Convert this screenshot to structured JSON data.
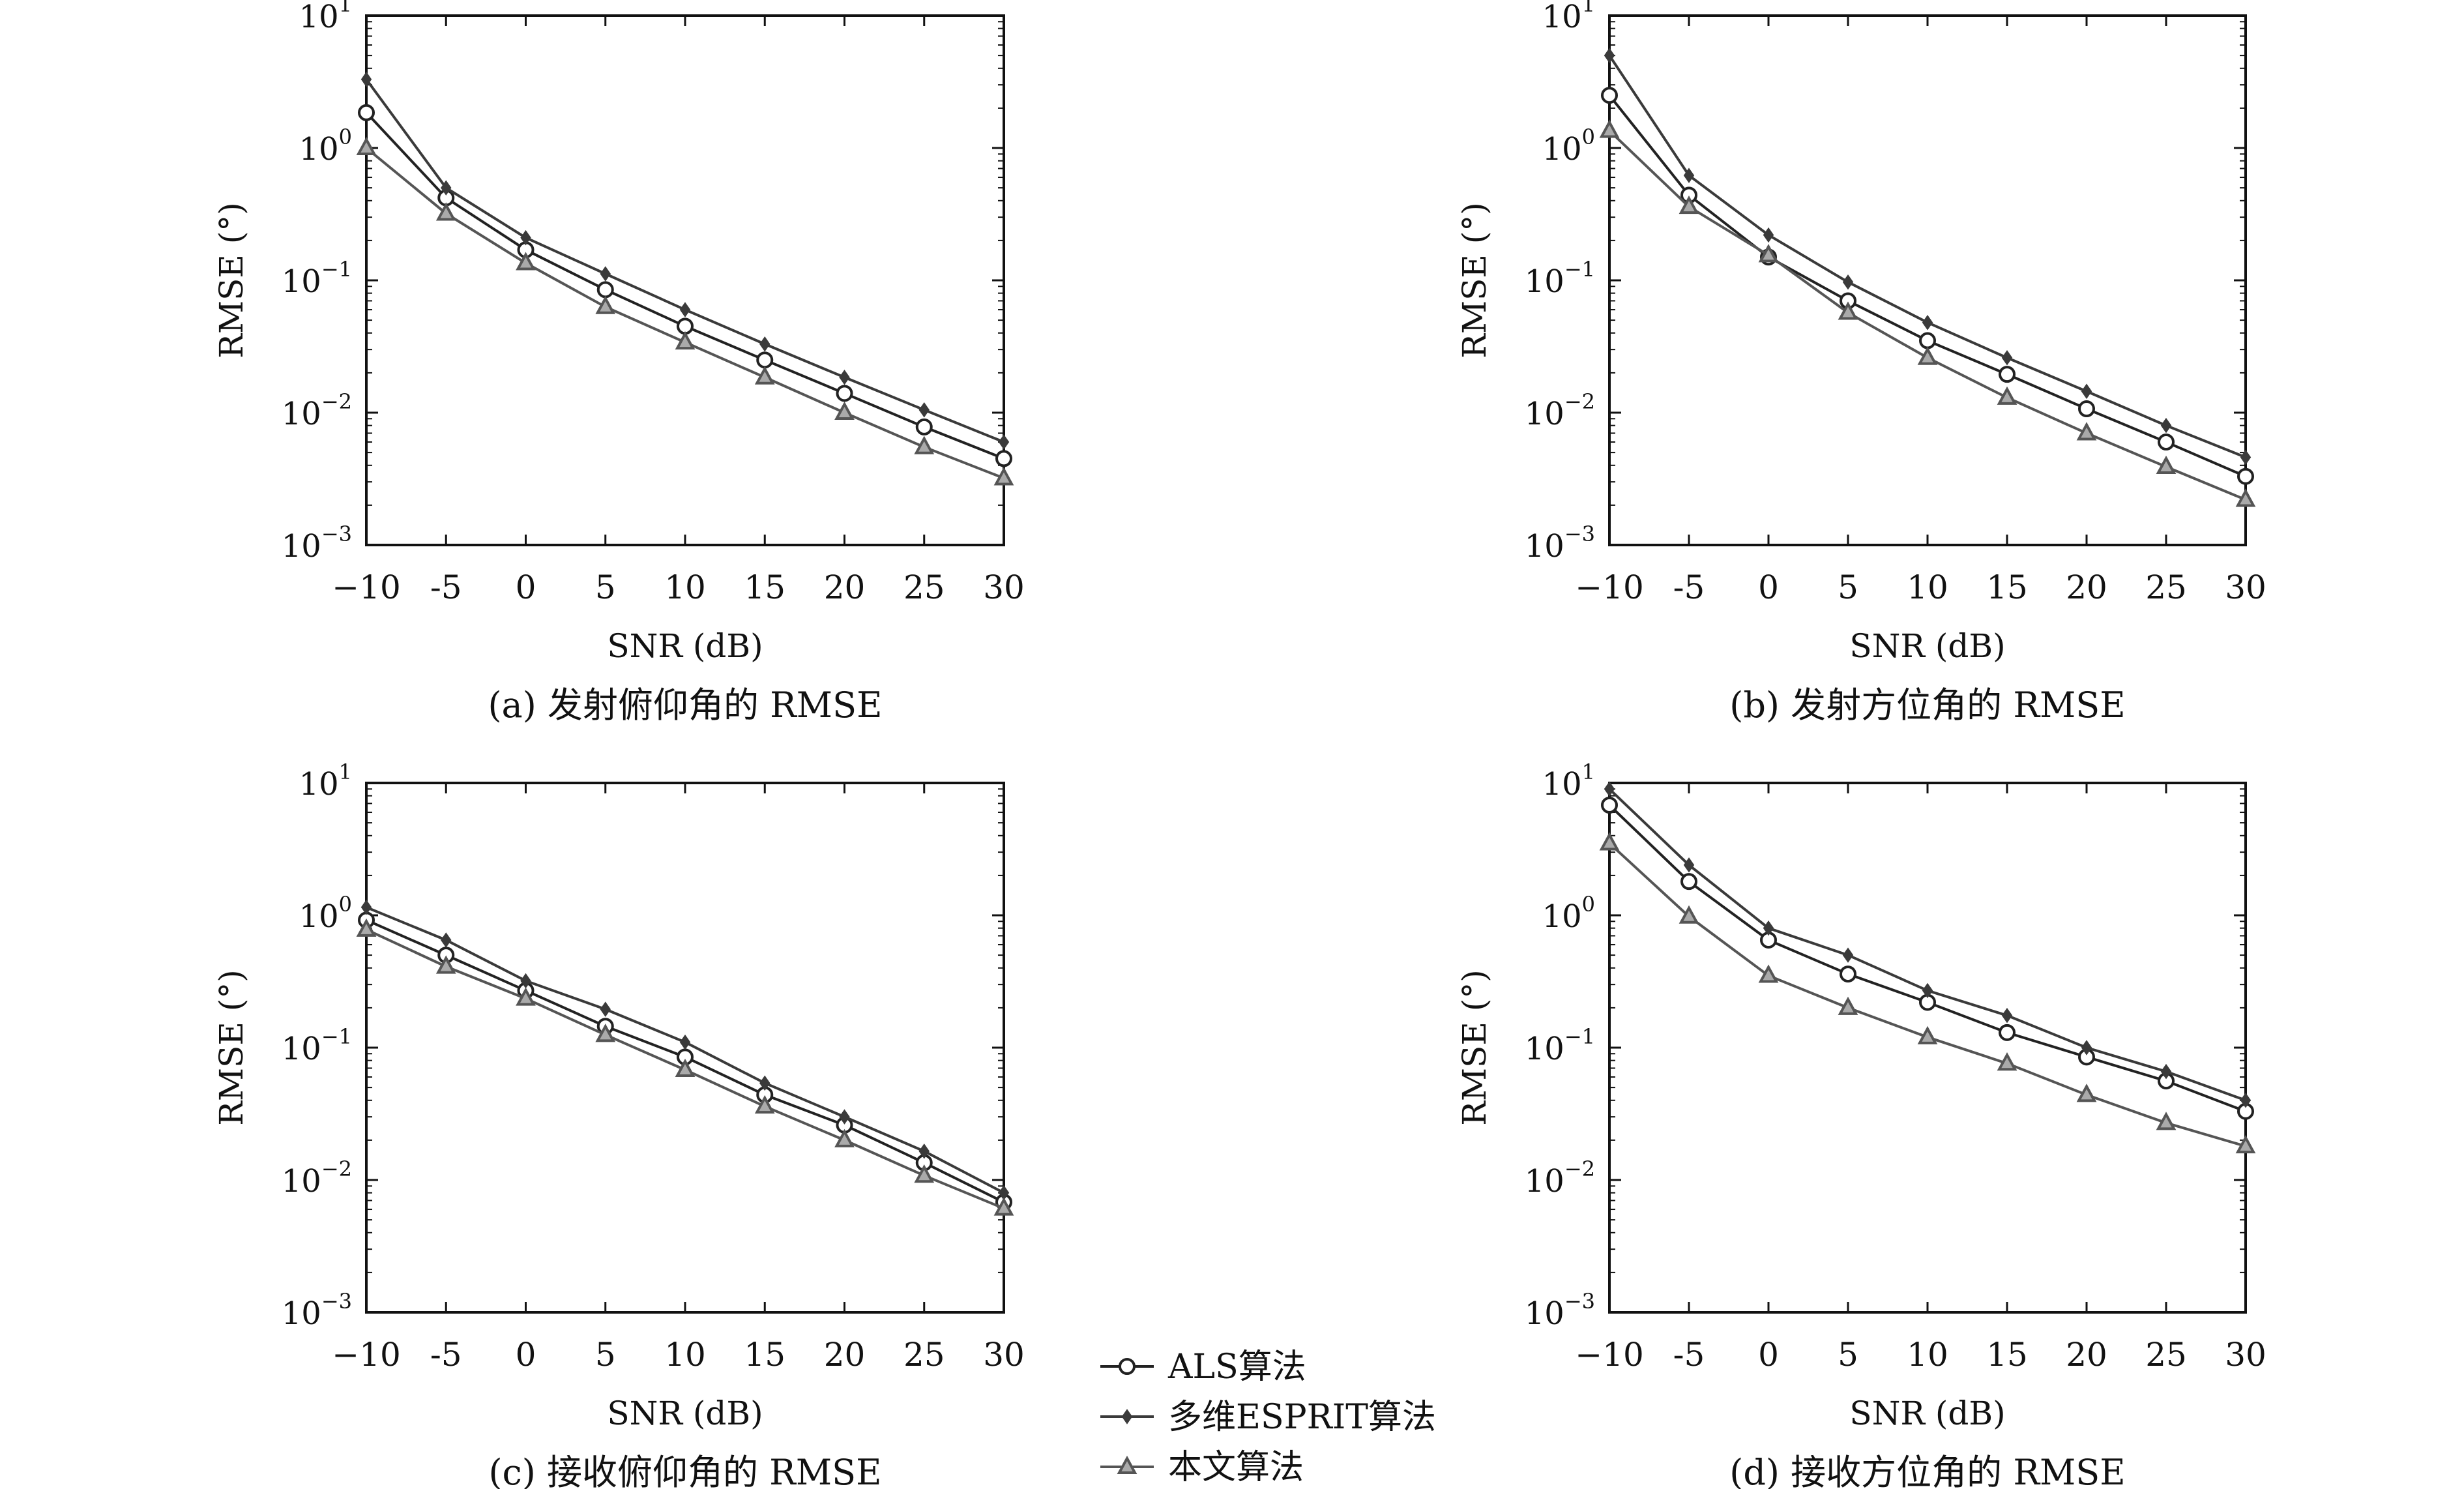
{
  "legend": {
    "position": "bottom-center",
    "entries": [
      {
        "label": "ALS算法",
        "marker": "circle",
        "color": "#222222"
      },
      {
        "label": "多维ESPRIT算法",
        "marker": "diamond",
        "color": "#3a3a3a"
      },
      {
        "label": "本文算法",
        "marker": "triangle",
        "color": "#555555"
      }
    ]
  },
  "chart_data": [
    {
      "type": "line",
      "caption": "(a) 发射俯仰角的 RMSE",
      "xlabel": "SNR (dB)",
      "ylabel": "RMSE (°)",
      "yscale": "log",
      "x": [
        -10,
        -5,
        0,
        5,
        10,
        15,
        20,
        25,
        30
      ],
      "xticks": [
        "−10",
        "-5",
        "0",
        "5",
        "10",
        "15",
        "20",
        "25",
        "30"
      ],
      "yticks": [
        -3,
        -2,
        -1,
        0,
        1
      ],
      "xlim": [
        -10,
        30
      ],
      "ylim": [
        0.001,
        10
      ],
      "grid": false,
      "series": [
        {
          "name": "ALS算法",
          "values": [
            1.85,
            0.42,
            0.17,
            0.085,
            0.045,
            0.025,
            0.014,
            0.0078,
            0.0045
          ]
        },
        {
          "name": "多维ESPRIT算法",
          "values": [
            3.3,
            0.5,
            0.21,
            0.112,
            0.06,
            0.033,
            0.0185,
            0.0105,
            0.006
          ]
        },
        {
          "name": "本文算法",
          "values": [
            1.0,
            0.32,
            0.135,
            0.063,
            0.034,
            0.0185,
            0.01,
            0.0055,
            0.0032
          ]
        }
      ]
    },
    {
      "type": "line",
      "caption": "(b) 发射方位角的 RMSE",
      "xlabel": "SNR (dB)",
      "ylabel": "RMSE (°)",
      "yscale": "log",
      "x": [
        -10,
        -5,
        0,
        5,
        10,
        15,
        20,
        25,
        30
      ],
      "xticks": [
        "−10",
        "-5",
        "0",
        "5",
        "10",
        "15",
        "20",
        "25",
        "30"
      ],
      "yticks": [
        -3,
        -2,
        -1,
        0,
        1
      ],
      "xlim": [
        -10,
        30
      ],
      "ylim": [
        0.001,
        10
      ],
      "grid": false,
      "series": [
        {
          "name": "ALS算法",
          "values": [
            2.5,
            0.44,
            0.15,
            0.07,
            0.035,
            0.0195,
            0.0107,
            0.006,
            0.0033
          ]
        },
        {
          "name": "多维ESPRIT算法",
          "values": [
            5.0,
            0.62,
            0.22,
            0.097,
            0.048,
            0.026,
            0.0145,
            0.008,
            0.0046
          ]
        },
        {
          "name": "本文算法",
          "values": [
            1.35,
            0.36,
            0.155,
            0.057,
            0.026,
            0.013,
            0.007,
            0.0039,
            0.0022
          ]
        }
      ]
    },
    {
      "type": "line",
      "caption": "(c) 接收俯仰角的 RMSE",
      "xlabel": "SNR (dB)",
      "ylabel": "RMSE (°)",
      "yscale": "log",
      "x": [
        -10,
        -5,
        0,
        5,
        10,
        15,
        20,
        25,
        30
      ],
      "xticks": [
        "−10",
        "-5",
        "0",
        "5",
        "10",
        "15",
        "20",
        "25",
        "30"
      ],
      "yticks": [
        -3,
        -2,
        -1,
        0,
        1
      ],
      "xlim": [
        -10,
        30
      ],
      "ylim": [
        0.001,
        10
      ],
      "grid": false,
      "series": [
        {
          "name": "ALS算法",
          "values": [
            0.92,
            0.5,
            0.27,
            0.145,
            0.085,
            0.044,
            0.026,
            0.0135,
            0.0068
          ]
        },
        {
          "name": "多维ESPRIT算法",
          "values": [
            1.15,
            0.65,
            0.32,
            0.195,
            0.11,
            0.054,
            0.03,
            0.0165,
            0.008
          ]
        },
        {
          "name": "本文算法",
          "values": [
            0.78,
            0.41,
            0.235,
            0.125,
            0.068,
            0.036,
            0.02,
            0.0108,
            0.0061
          ]
        }
      ]
    },
    {
      "type": "line",
      "caption": "(d) 接收方位角的 RMSE",
      "xlabel": "SNR (dB)",
      "ylabel": "RMSE (°)",
      "yscale": "log",
      "x": [
        -10,
        -5,
        0,
        5,
        10,
        15,
        20,
        25,
        30
      ],
      "xticks": [
        "−10",
        "-5",
        "0",
        "5",
        "10",
        "15",
        "20",
        "25",
        "30"
      ],
      "yticks": [
        -3,
        -2,
        -1,
        0,
        1
      ],
      "xlim": [
        -10,
        30
      ],
      "ylim": [
        0.001,
        10
      ],
      "grid": false,
      "series": [
        {
          "name": "ALS算法",
          "values": [
            6.8,
            1.8,
            0.65,
            0.36,
            0.22,
            0.13,
            0.085,
            0.056,
            0.033
          ]
        },
        {
          "name": "多维ESPRIT算法",
          "values": [
            9.0,
            2.4,
            0.8,
            0.5,
            0.27,
            0.175,
            0.1,
            0.066,
            0.04
          ]
        },
        {
          "name": "本文算法",
          "values": [
            3.5,
            0.98,
            0.35,
            0.2,
            0.12,
            0.076,
            0.044,
            0.027,
            0.018
          ]
        }
      ]
    }
  ]
}
